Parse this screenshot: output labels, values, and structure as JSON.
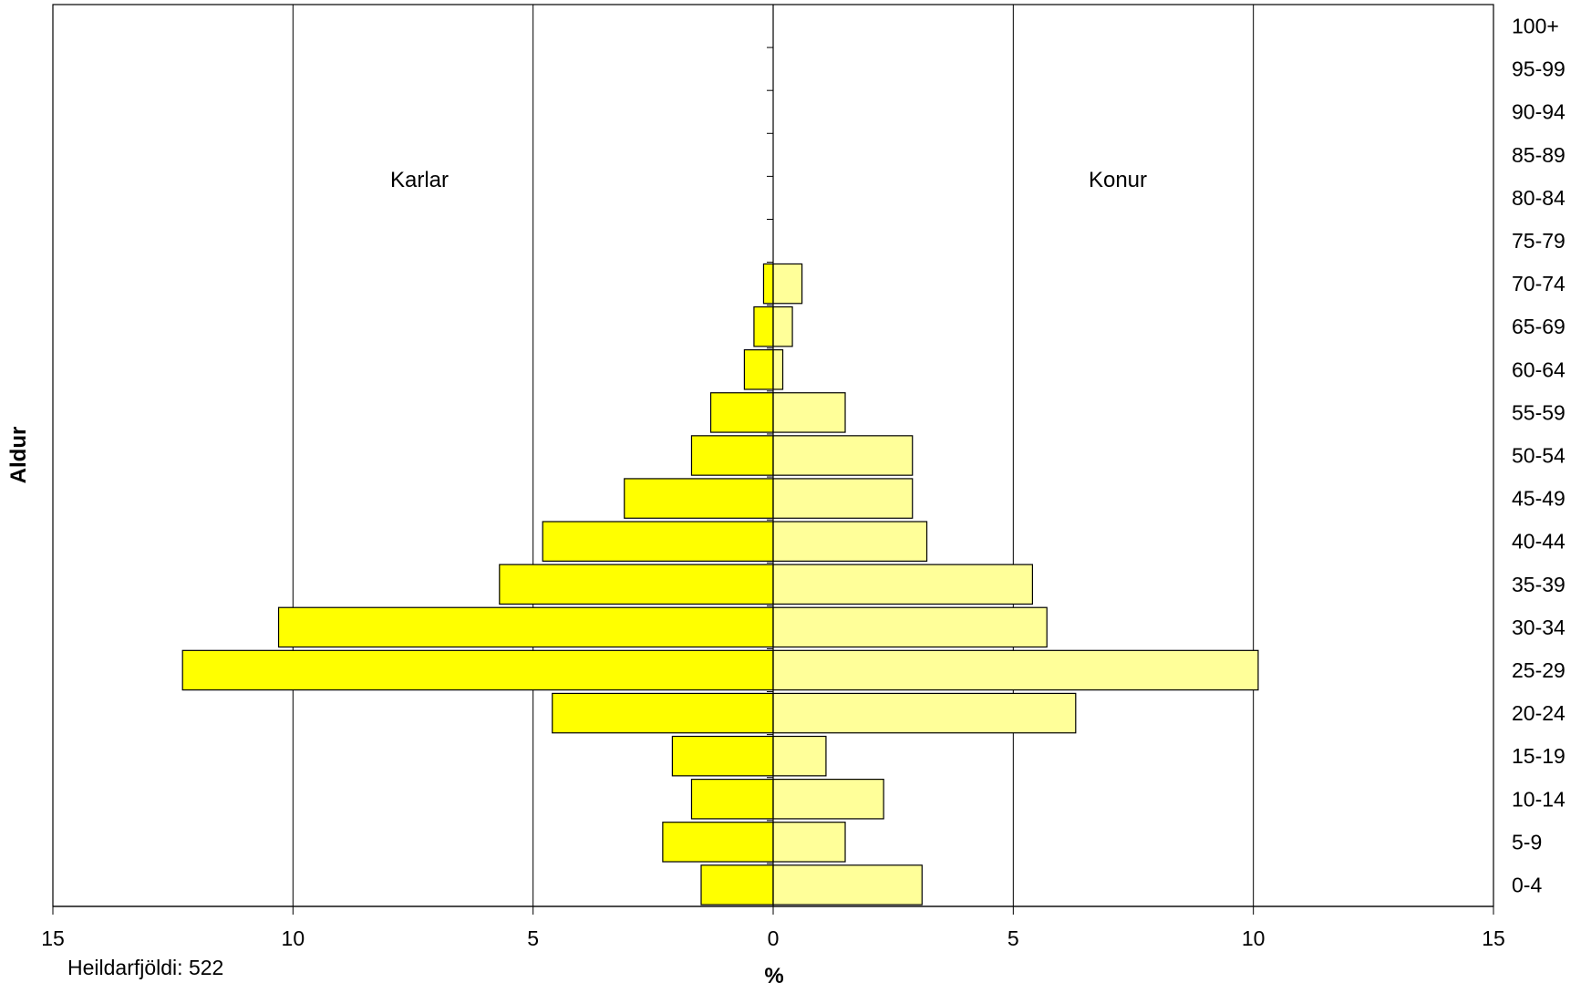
{
  "chart_data": {
    "type": "bar",
    "orientation": "horizontal",
    "layout": "population-pyramid",
    "xlabel": "%",
    "ylabel": "Aldur",
    "xlim": [
      -15,
      15
    ],
    "x_ticks": [
      {
        "value": -15,
        "label": "15"
      },
      {
        "value": -10,
        "label": "10"
      },
      {
        "value": -5,
        "label": "5"
      },
      {
        "value": 0,
        "label": "0"
      },
      {
        "value": 5,
        "label": "5"
      },
      {
        "value": 10,
        "label": "10"
      },
      {
        "value": 15,
        "label": "15"
      }
    ],
    "grid": "vertical major gridlines",
    "categories": [
      "0-4",
      "5-9",
      "10-14",
      "15-19",
      "20-24",
      "25-29",
      "30-34",
      "35-39",
      "40-44",
      "45-49",
      "50-54",
      "55-59",
      "60-64",
      "65-69",
      "70-74",
      "75-79",
      "80-84",
      "85-89",
      "90-94",
      "95-99",
      "100+"
    ],
    "series": [
      {
        "name": "Karlar",
        "side": "left",
        "color": "#ffff00",
        "values": [
          1.5,
          2.3,
          1.7,
          2.1,
          4.6,
          12.3,
          10.3,
          5.7,
          4.8,
          3.1,
          1.7,
          1.3,
          0.6,
          0.4,
          0.2,
          0,
          0,
          0,
          0,
          0,
          0
        ]
      },
      {
        "name": "Konur",
        "side": "right",
        "color": "#ffff99",
        "values": [
          3.1,
          1.5,
          2.3,
          1.1,
          6.3,
          10.1,
          5.7,
          5.4,
          3.2,
          2.9,
          2.9,
          1.5,
          0.2,
          0.4,
          0.6,
          0,
          0,
          0,
          0,
          0,
          0
        ]
      }
    ],
    "annotations": {
      "total": "Heildarfjöldi: 522"
    }
  }
}
